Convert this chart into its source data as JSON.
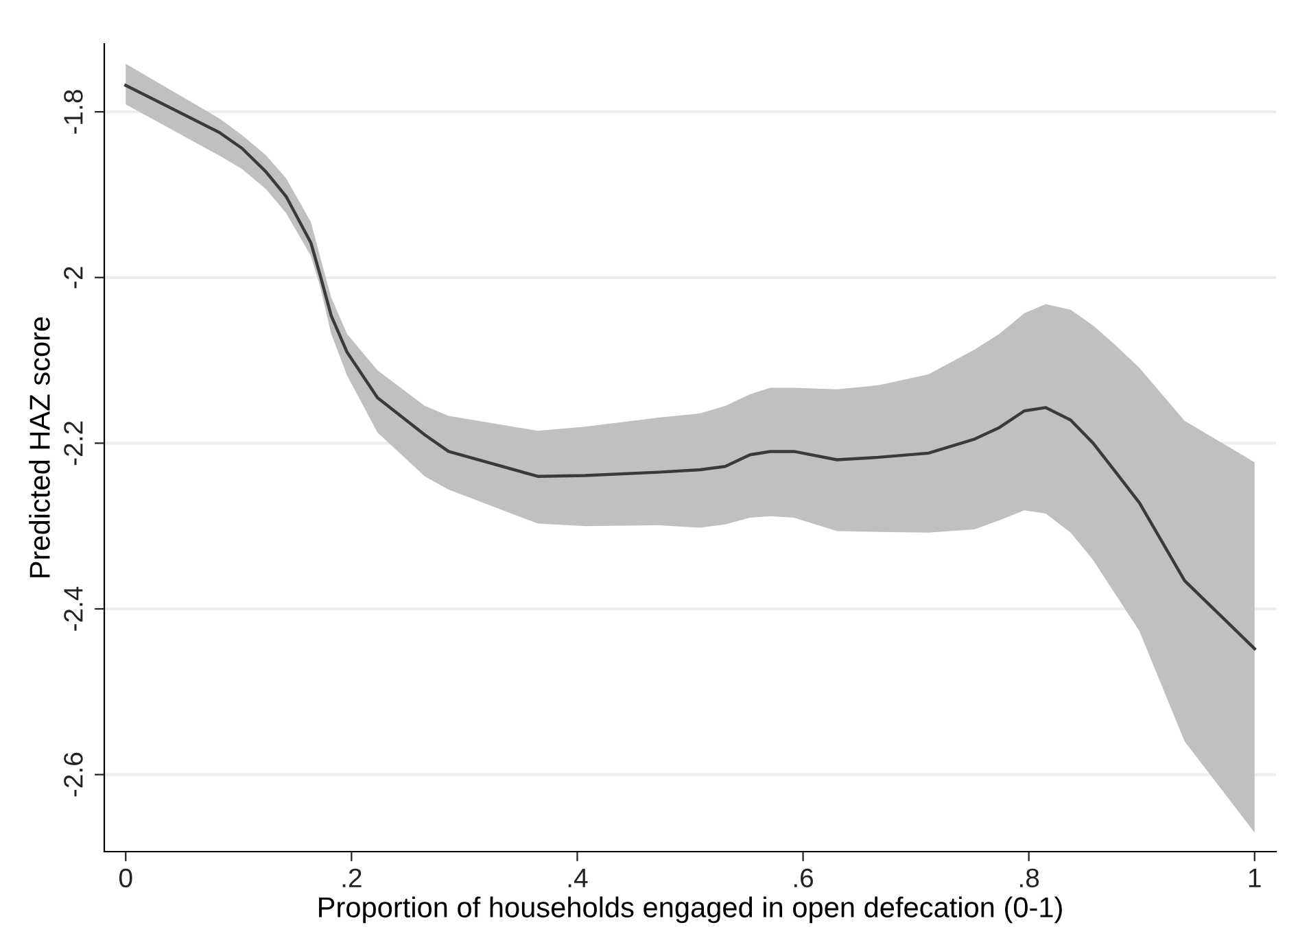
{
  "chart_data": {
    "type": "line",
    "xlabel": "Proportion of households engaged in open defecation (0-1)",
    "ylabel": "Predicted HAZ score",
    "x": [
      0,
      0.083,
      0.103,
      0.124,
      0.142,
      0.164,
      0.172,
      0.182,
      0.196,
      0.223,
      0.265,
      0.286,
      0.365,
      0.407,
      0.472,
      0.509,
      0.531,
      0.553,
      0.571,
      0.592,
      0.63,
      0.667,
      0.711,
      0.752,
      0.774,
      0.796,
      0.815,
      0.837,
      0.857,
      0.877,
      0.898,
      0.938,
      1.0
    ],
    "series": [
      {
        "color": "#3a3a3a",
        "values": [
          -1.768,
          -1.825,
          -1.844,
          -1.872,
          -1.902,
          -1.958,
          -1.996,
          -2.046,
          -2.09,
          -2.145,
          -2.19,
          -2.21,
          -2.24,
          -2.239,
          -2.235,
          -2.232,
          -2.228,
          -2.214,
          -2.21,
          -2.21,
          -2.22,
          -2.217,
          -2.212,
          -2.195,
          -2.181,
          -2.161,
          -2.157,
          -2.172,
          -2.2,
          -2.235,
          -2.272,
          -2.366,
          -2.448
        ],
        "upper": [
          -1.742,
          -1.808,
          -1.828,
          -1.852,
          -1.88,
          -1.933,
          -1.974,
          -2.024,
          -2.068,
          -2.112,
          -2.155,
          -2.167,
          -2.185,
          -2.18,
          -2.169,
          -2.164,
          -2.155,
          -2.141,
          -2.133,
          -2.133,
          -2.135,
          -2.13,
          -2.117,
          -2.087,
          -2.068,
          -2.043,
          -2.032,
          -2.039,
          -2.058,
          -2.082,
          -2.109,
          -2.173,
          -2.223
        ],
        "lower": [
          -1.791,
          -1.853,
          -1.869,
          -1.893,
          -1.922,
          -1.974,
          -2.01,
          -2.068,
          -2.118,
          -2.187,
          -2.24,
          -2.256,
          -2.297,
          -2.3,
          -2.299,
          -2.302,
          -2.298,
          -2.29,
          -2.288,
          -2.29,
          -2.306,
          -2.307,
          -2.308,
          -2.304,
          -2.293,
          -2.281,
          -2.285,
          -2.308,
          -2.341,
          -2.383,
          -2.427,
          -2.56,
          -2.67
        ]
      }
    ],
    "xlim": [
      -0.019,
      1.019
    ],
    "ylim": [
      -2.693,
      -1.718
    ],
    "xticks": [
      0,
      {
        "value": 0.2,
        "label": ".2"
      },
      {
        "value": 0.4,
        "label": ".4"
      },
      {
        "value": 0.6,
        "label": ".6"
      },
      {
        "value": 0.8,
        "label": ".8"
      },
      1
    ],
    "yticks": [
      -1.8,
      -2,
      -2.2,
      -2.4,
      -2.6
    ],
    "grid": "y",
    "legend": false,
    "marker": "none",
    "line_style": "solid"
  }
}
